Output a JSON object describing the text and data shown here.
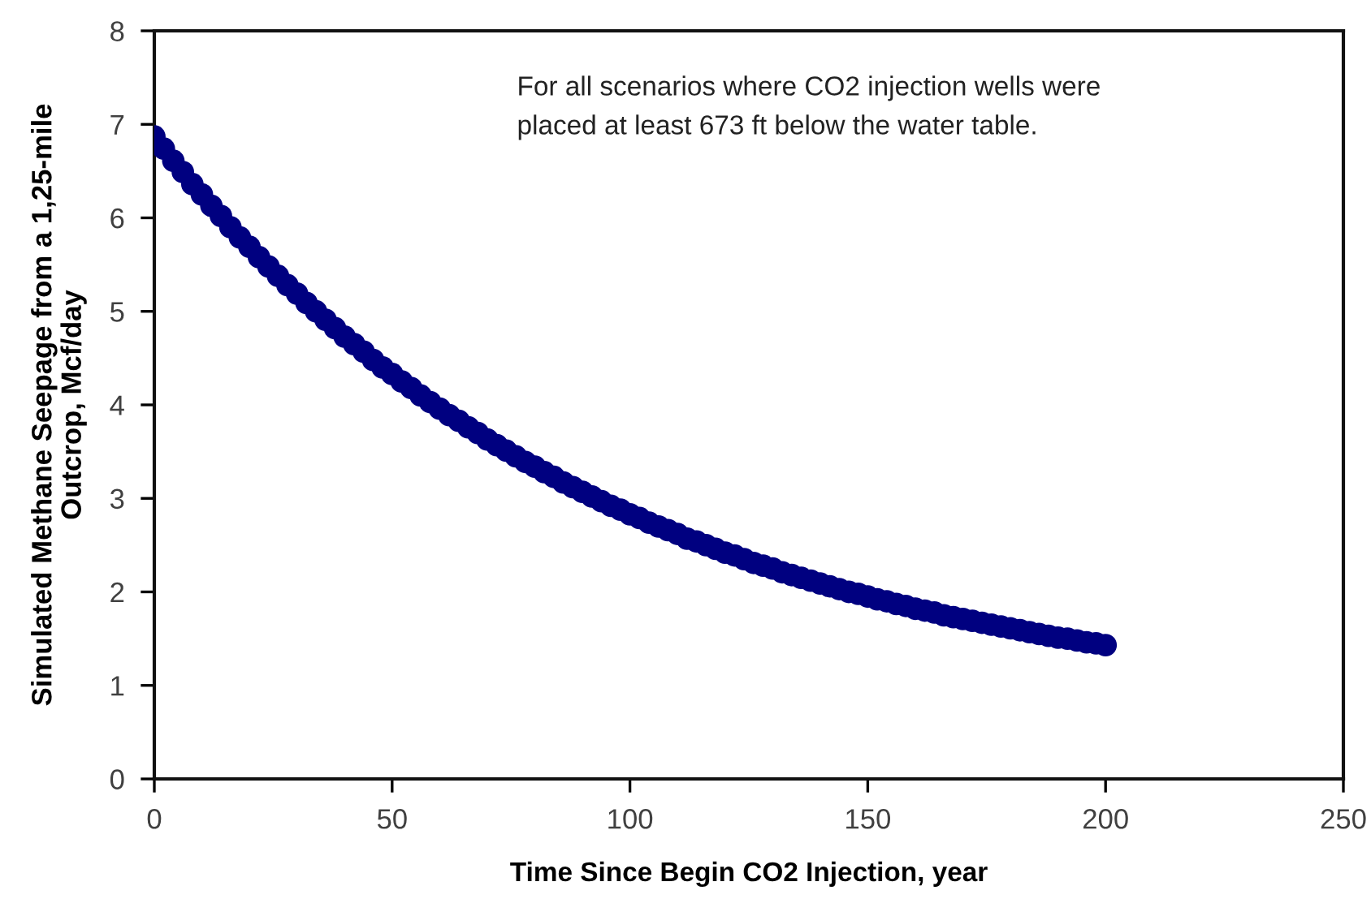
{
  "chart_data": {
    "type": "scatter",
    "xlabel": "Time Since Begin CO2 Injection, year",
    "ylabel": "Simulated Methane Seepage from a 1,25-mile\nOutcrop, Mcf/day",
    "annotations": [
      "For all scenarios where CO2 injection wells were\nplaced at least 673 ft below the water table."
    ],
    "x": [
      0,
      2,
      4,
      6,
      8,
      10,
      12,
      14,
      16,
      18,
      20,
      22,
      24,
      26,
      28,
      30,
      32,
      34,
      36,
      38,
      40,
      42,
      44,
      46,
      48,
      50,
      52,
      54,
      56,
      58,
      60,
      62,
      64,
      66,
      68,
      70,
      72,
      74,
      76,
      78,
      80,
      82,
      84,
      86,
      88,
      90,
      92,
      94,
      96,
      98,
      100,
      102,
      104,
      106,
      108,
      110,
      112,
      114,
      116,
      118,
      120,
      122,
      124,
      126,
      128,
      130,
      132,
      134,
      136,
      138,
      140,
      142,
      144,
      146,
      148,
      150,
      152,
      154,
      156,
      158,
      160,
      162,
      164,
      166,
      168,
      170,
      172,
      174,
      176,
      178,
      180,
      182,
      184,
      186,
      188,
      190,
      192,
      194,
      196,
      198,
      200
    ],
    "values": [
      6.87,
      6.74,
      6.61,
      6.49,
      6.36,
      6.25,
      6.13,
      6.02,
      5.9,
      5.79,
      5.69,
      5.58,
      5.48,
      5.38,
      5.28,
      5.19,
      5.09,
      5.0,
      4.91,
      4.82,
      4.73,
      4.65,
      4.57,
      4.48,
      4.4,
      4.33,
      4.25,
      4.18,
      4.1,
      4.03,
      3.96,
      3.89,
      3.83,
      3.76,
      3.7,
      3.63,
      3.57,
      3.51,
      3.45,
      3.39,
      3.34,
      3.28,
      3.23,
      3.17,
      3.12,
      3.07,
      3.02,
      2.97,
      2.92,
      2.88,
      2.83,
      2.79,
      2.74,
      2.7,
      2.66,
      2.62,
      2.57,
      2.54,
      2.5,
      2.46,
      2.42,
      2.39,
      2.35,
      2.31,
      2.28,
      2.25,
      2.21,
      2.18,
      2.15,
      2.12,
      2.09,
      2.06,
      2.03,
      2.0,
      1.98,
      1.95,
      1.92,
      1.9,
      1.87,
      1.85,
      1.82,
      1.8,
      1.78,
      1.75,
      1.73,
      1.71,
      1.69,
      1.67,
      1.65,
      1.63,
      1.61,
      1.59,
      1.57,
      1.55,
      1.53,
      1.51,
      1.5,
      1.48,
      1.46,
      1.45,
      1.43
    ],
    "color": "#000080",
    "marker": "circle",
    "xlim": [
      0,
      250
    ],
    "xticks": [
      0,
      50,
      100,
      150,
      200,
      250
    ],
    "ylim": [
      0,
      8
    ],
    "yticks": [
      0,
      1,
      2,
      3,
      4,
      5,
      6,
      7,
      8
    ]
  }
}
